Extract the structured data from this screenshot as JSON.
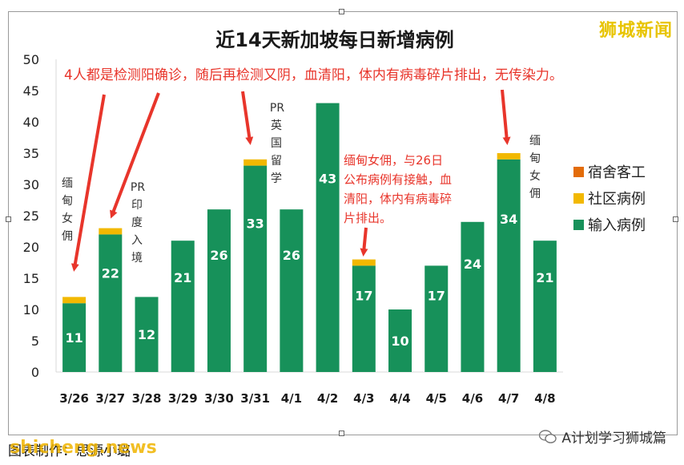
{
  "chart_data": {
    "type": "bar",
    "stacked": true,
    "title": "近14天新加坡每日新增病例",
    "categories": [
      "3/26",
      "3/27",
      "3/28",
      "3/29",
      "3/30",
      "3/31",
      "4/1",
      "4/2",
      "4/3",
      "4/4",
      "4/5",
      "4/6",
      "4/7",
      "4/8"
    ],
    "series": [
      {
        "name": "输入病例",
        "color": "#17915a",
        "values": [
          11,
          22,
          12,
          21,
          26,
          33,
          26,
          43,
          17,
          10,
          17,
          24,
          34,
          21
        ]
      },
      {
        "name": "社区病例",
        "color": "#f2b800",
        "values": [
          1,
          1,
          0,
          0,
          0,
          1,
          0,
          0,
          1,
          0,
          0,
          0,
          1,
          0
        ]
      },
      {
        "name": "宿舍客工",
        "color": "#e36c0a",
        "values": [
          0,
          0,
          0,
          0,
          0,
          0,
          0,
          0,
          0,
          0,
          0,
          0,
          0,
          0
        ]
      }
    ],
    "yticks": [
      0,
      5,
      10,
      15,
      20,
      25,
      30,
      35,
      40,
      45,
      50
    ],
    "ylim": [
      0,
      50
    ],
    "legend_position": "right",
    "annotations": {
      "top_note": "4人都是检测阳确诊，随后再检测又阴，血清阳，体内有病毒碎片排出，无传染力。",
      "note_3_26": "缅甸女佣",
      "note_3_27": "PR印度入境",
      "note_3_31": "PR英国留学",
      "note_4_3": "缅甸女佣，与26日公布病例有接触，血清阳，体内有病毒碎片排出。",
      "note_4_7": "缅甸女佣"
    }
  },
  "watermark_top": "狮城新闻",
  "caption": "图表制作：思源小璐",
  "caption_overlay": "shicheng.news",
  "wechat_label": "A计划学习狮城篇"
}
